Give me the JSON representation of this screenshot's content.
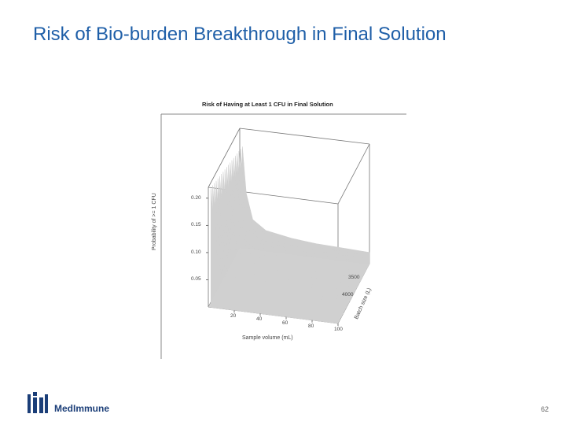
{
  "slide": {
    "title": "Risk of Bio-burden Breakthrough in Final Solution",
    "page_number": "62"
  },
  "logo": {
    "text": "MedImmune",
    "color": "#1b3e78"
  },
  "colors": {
    "title": "#1f5fa8",
    "surface": "#cfcfcf"
  },
  "chart_data": {
    "type": "surface",
    "title": "Risk of Having at Least 1 CFU in Final Solution",
    "zlabel": "Probability of >= 1 CFU",
    "xlabel": "Sample volume (mL)",
    "ylabel": "Batch size (L)",
    "z_ticks": [
      "0.05",
      "0.10",
      "0.15",
      "0.20"
    ],
    "x_ticks": [
      "20",
      "40",
      "60",
      "80",
      "100"
    ],
    "y_ticks": [
      "4000",
      "3500"
    ],
    "zlim": [
      0,
      0.22
    ],
    "xlim": [
      0,
      100
    ],
    "ylim": [
      0,
      4000
    ],
    "grid": false,
    "surface_color": "#cfcfcf",
    "profile": {
      "description_points": [
        {
          "x": 2,
          "z": 0.22
        },
        {
          "x": 5,
          "z": 0.12
        },
        {
          "x": 10,
          "z": 0.065
        },
        {
          "x": 20,
          "z": 0.045
        },
        {
          "x": 40,
          "z": 0.035
        },
        {
          "x": 60,
          "z": 0.03
        },
        {
          "x": 80,
          "z": 0.028
        },
        {
          "x": 100,
          "z": 0.026
        }
      ]
    }
  }
}
